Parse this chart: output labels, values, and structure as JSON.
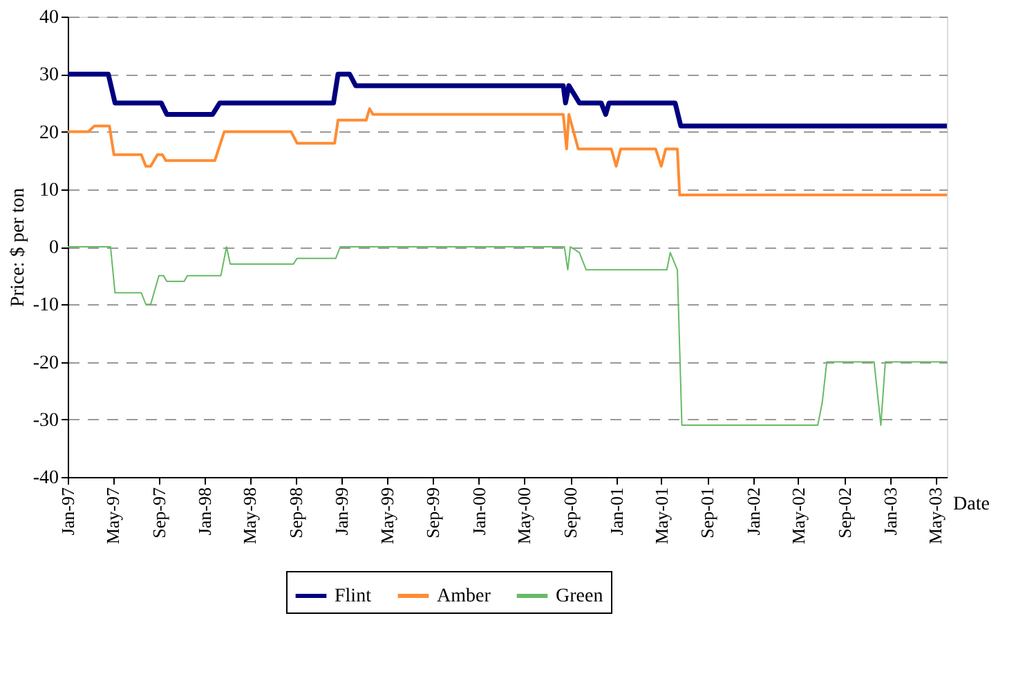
{
  "chart_data": {
    "type": "line",
    "xlabel": "Date",
    "ylabel": "Price:  $ per ton",
    "xlim": [
      "1997-01-01",
      "2003-06-01"
    ],
    "ylim": [
      -40,
      40
    ],
    "yticks": [
      -40,
      -30,
      -20,
      -10,
      0,
      10,
      20,
      30,
      40
    ],
    "xticks": [
      {
        "value": "1997-01-01",
        "label": "Jan-97"
      },
      {
        "value": "1997-05-01",
        "label": "May-97"
      },
      {
        "value": "1997-09-01",
        "label": "Sep-97"
      },
      {
        "value": "1998-01-01",
        "label": "Jan-98"
      },
      {
        "value": "1998-05-01",
        "label": "May-98"
      },
      {
        "value": "1998-09-01",
        "label": "Sep-98"
      },
      {
        "value": "1999-01-01",
        "label": "Jan-99"
      },
      {
        "value": "1999-05-01",
        "label": "May-99"
      },
      {
        "value": "1999-09-01",
        "label": "Sep-99"
      },
      {
        "value": "2000-01-01",
        "label": "Jan-00"
      },
      {
        "value": "2000-05-01",
        "label": "May-00"
      },
      {
        "value": "2000-09-01",
        "label": "Sep-00"
      },
      {
        "value": "2001-01-01",
        "label": "Jan-01"
      },
      {
        "value": "2001-05-01",
        "label": "May-01"
      },
      {
        "value": "2001-09-01",
        "label": "Sep-01"
      },
      {
        "value": "2002-01-01",
        "label": "Jan-02"
      },
      {
        "value": "2002-05-01",
        "label": "May-02"
      },
      {
        "value": "2002-09-01",
        "label": "Sep-02"
      },
      {
        "value": "2003-01-01",
        "label": "Jan-03"
      },
      {
        "value": "2003-05-01",
        "label": "May-03"
      }
    ],
    "grid": "y",
    "legend": "bottom",
    "marker": "none",
    "series": [
      {
        "name": "Flint",
        "color": "#000080",
        "x": [
          "1997-01-01",
          "1997-04-19",
          "1997-05-07",
          "1997-09-07",
          "1997-09-22",
          "1998-01-22",
          "1998-02-10",
          "1998-12-10",
          "1998-12-22",
          "1999-01-22",
          "1999-02-07",
          "2000-08-13",
          "2000-08-19",
          "2000-08-28",
          "2000-09-25",
          "2000-11-22",
          "2000-12-04",
          "2000-12-13",
          "2001-06-07",
          "2001-06-22",
          "2003-06-01"
        ],
        "values": [
          30,
          30,
          25,
          25,
          23,
          23,
          25,
          25,
          30,
          30,
          28,
          28,
          25,
          28,
          25,
          25,
          23,
          25,
          25,
          21,
          21
        ]
      },
      {
        "name": "Amber",
        "color": "#ff8c33",
        "x": [
          "1997-01-01",
          "1997-02-25",
          "1997-03-13",
          "1997-04-22",
          "1997-05-04",
          "1997-07-16",
          "1997-07-28",
          "1997-08-10",
          "1997-08-28",
          "1997-09-10",
          "1997-09-19",
          "1998-01-28",
          "1998-02-07",
          "1998-02-22",
          "1998-08-19",
          "1998-09-04",
          "1998-12-13",
          "1998-12-22",
          "1999-03-07",
          "1999-03-16",
          "1999-03-25",
          "2000-08-13",
          "2000-08-22",
          "2000-08-28",
          "2000-09-22",
          "2000-12-19",
          "2001-01-01",
          "2001-01-13",
          "2001-04-16",
          "2001-05-01",
          "2001-05-13",
          "2001-06-13",
          "2001-06-19",
          "2003-06-01"
        ],
        "values": [
          20,
          20,
          21,
          21,
          16,
          16,
          14,
          14,
          16,
          16,
          15,
          15,
          17,
          20,
          20,
          18,
          18,
          22,
          22,
          24,
          23,
          23,
          17,
          23,
          17,
          17,
          14,
          17,
          17,
          14,
          17,
          17,
          9,
          9
        ]
      },
      {
        "name": "Green",
        "color": "#66bb66",
        "x": [
          "1997-01-01",
          "1997-04-25",
          "1997-05-07",
          "1997-07-16",
          "1997-07-28",
          "1997-08-10",
          "1997-09-01",
          "1997-09-13",
          "1997-09-22",
          "1997-11-07",
          "1997-11-16",
          "1998-02-13",
          "1998-02-28",
          "1998-03-10",
          "1998-08-25",
          "1998-09-04",
          "1998-12-16",
          "1998-12-28",
          "2000-08-16",
          "2000-08-25",
          "2000-09-01",
          "2000-09-25",
          "2000-10-13",
          "2001-05-16",
          "2001-05-25",
          "2001-06-13",
          "2001-06-25",
          "2002-06-22",
          "2002-07-04",
          "2002-07-16",
          "2002-11-19",
          "2002-12-07",
          "2002-12-19",
          "2003-06-01"
        ],
        "values": [
          0,
          0,
          -8,
          -8,
          -10,
          -10,
          -5,
          -5,
          -6,
          -6,
          -5,
          -5,
          0,
          -3,
          -3,
          -2,
          -2,
          0,
          0,
          -4,
          0,
          -1,
          -4,
          -4,
          -1,
          -4,
          -31,
          -31,
          -27,
          -20,
          -20,
          -31,
          -20,
          -20
        ]
      }
    ]
  }
}
